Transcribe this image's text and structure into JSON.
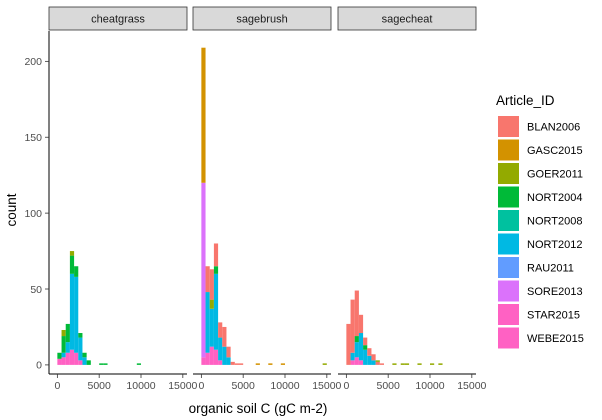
{
  "chart_data": {
    "type": "bar",
    "subtype": "stacked-histogram-faceted",
    "xlabel": "organic soil C (gC m-2)",
    "ylabel": "count",
    "xlim": [
      -1000,
      15500
    ],
    "ylim": [
      -6,
      220
    ],
    "x_ticks": [
      0,
      5000,
      10000,
      15000
    ],
    "y_ticks": [
      0,
      50,
      100,
      150,
      200
    ],
    "bin_width": 500,
    "grid": false,
    "legend_position": "right",
    "legend": {
      "title": "Article_ID",
      "entries": [
        {
          "name": "BLAN2006",
          "color": "#F8766D"
        },
        {
          "name": "GASC2015",
          "color": "#D39200"
        },
        {
          "name": "GOER2011",
          "color": "#93AA00"
        },
        {
          "name": "NORT2004",
          "color": "#00BA38"
        },
        {
          "name": "NORT2008",
          "color": "#00C19F"
        },
        {
          "name": "NORT2012",
          "color": "#00B9E3"
        },
        {
          "name": "RAU2011",
          "color": "#619CFF"
        },
        {
          "name": "SORE2013",
          "color": "#DB72FB"
        },
        {
          "name": "STAR2015",
          "color": "#FF61C3"
        },
        {
          "name": "WEBE2015",
          "color": "#FF61C3"
        }
      ]
    },
    "facets": [
      {
        "label": "cheatgrass",
        "bins": [
          {
            "x": 0,
            "layers": [
              {
                "series": "WEBE2015",
                "value": 4
              },
              {
                "series": "NORT2004",
                "value": 4
              }
            ]
          },
          {
            "x": 500,
            "layers": [
              {
                "series": "WEBE2015",
                "value": 5
              },
              {
                "series": "NORT2012",
                "value": 3
              },
              {
                "series": "NORT2004",
                "value": 11
              },
              {
                "series": "GOER2011",
                "value": 4
              }
            ]
          },
          {
            "x": 1000,
            "layers": [
              {
                "series": "WEBE2015",
                "value": 8
              },
              {
                "series": "NORT2012",
                "value": 7
              },
              {
                "series": "NORT2004",
                "value": 12
              }
            ]
          },
          {
            "x": 1500,
            "layers": [
              {
                "series": "WEBE2015",
                "value": 10
              },
              {
                "series": "NORT2012",
                "value": 50
              },
              {
                "series": "NORT2004",
                "value": 12
              },
              {
                "series": "GOER2011",
                "value": 3
              }
            ]
          },
          {
            "x": 2000,
            "layers": [
              {
                "series": "WEBE2015",
                "value": 8
              },
              {
                "series": "NORT2012",
                "value": 50
              },
              {
                "series": "NORT2004",
                "value": 7
              }
            ]
          },
          {
            "x": 2500,
            "layers": [
              {
                "series": "WEBE2015",
                "value": 3
              },
              {
                "series": "NORT2012",
                "value": 15
              },
              {
                "series": "NORT2004",
                "value": 3
              }
            ]
          },
          {
            "x": 3000,
            "layers": [
              {
                "series": "NORT2012",
                "value": 5
              },
              {
                "series": "NORT2004",
                "value": 3
              }
            ]
          },
          {
            "x": 3500,
            "layers": [
              {
                "series": "NORT2004",
                "value": 3
              }
            ]
          },
          {
            "x": 5000,
            "layers": [
              {
                "series": "NORT2004",
                "value": 1
              }
            ]
          },
          {
            "x": 5500,
            "layers": [
              {
                "series": "NORT2004",
                "value": 1
              }
            ]
          },
          {
            "x": 9500,
            "layers": [
              {
                "series": "NORT2004",
                "value": 1
              }
            ]
          }
        ]
      },
      {
        "label": "sagebrush",
        "bins": [
          {
            "x": 0,
            "layers": [
              {
                "series": "STAR2015",
                "value": 5
              },
              {
                "series": "SORE2013",
                "value": 115
              },
              {
                "series": "GASC2015",
                "value": 89
              }
            ]
          },
          {
            "x": 500,
            "layers": [
              {
                "series": "STAR2015",
                "value": 8
              },
              {
                "series": "NORT2012",
                "value": 40
              },
              {
                "series": "BLAN2006",
                "value": 17
              }
            ]
          },
          {
            "x": 1000,
            "layers": [
              {
                "series": "STAR2015",
                "value": 12
              },
              {
                "series": "NORT2012",
                "value": 25
              },
              {
                "series": "GOER2011",
                "value": 6
              },
              {
                "series": "BLAN2006",
                "value": 20
              }
            ]
          },
          {
            "x": 1500,
            "layers": [
              {
                "series": "STAR2015",
                "value": 10
              },
              {
                "series": "NORT2012",
                "value": 50
              },
              {
                "series": "NORT2004",
                "value": 5
              },
              {
                "series": "BLAN2006",
                "value": 15
              }
            ]
          },
          {
            "x": 2000,
            "layers": [
              {
                "series": "STAR2015",
                "value": 3
              },
              {
                "series": "NORT2012",
                "value": 15
              },
              {
                "series": "BLAN2006",
                "value": 10
              }
            ]
          },
          {
            "x": 2500,
            "layers": [
              {
                "series": "NORT2012",
                "value": 12
              },
              {
                "series": "BLAN2006",
                "value": 13
              }
            ]
          },
          {
            "x": 3000,
            "layers": [
              {
                "series": "NORT2012",
                "value": 5
              },
              {
                "series": "BLAN2006",
                "value": 7
              }
            ]
          },
          {
            "x": 3500,
            "layers": [
              {
                "series": "BLAN2006",
                "value": 2
              }
            ]
          },
          {
            "x": 4000,
            "layers": [
              {
                "series": "BLAN2006",
                "value": 1
              }
            ]
          },
          {
            "x": 4500,
            "layers": [
              {
                "series": "BLAN2006",
                "value": 1
              }
            ]
          },
          {
            "x": 6500,
            "layers": [
              {
                "series": "GASC2015",
                "value": 1
              }
            ]
          },
          {
            "x": 8000,
            "layers": [
              {
                "series": "GASC2015",
                "value": 1
              }
            ]
          },
          {
            "x": 9500,
            "layers": [
              {
                "series": "GASC2015",
                "value": 1
              }
            ]
          },
          {
            "x": 14500,
            "layers": [
              {
                "series": "GOER2011",
                "value": 1
              }
            ]
          }
        ]
      },
      {
        "label": "sagecheat",
        "bins": [
          {
            "x": 0,
            "layers": [
              {
                "series": "BLAN2006",
                "value": 27
              }
            ]
          },
          {
            "x": 500,
            "layers": [
              {
                "series": "STAR2015",
                "value": 3
              },
              {
                "series": "NORT2012",
                "value": 5
              },
              {
                "series": "BLAN2006",
                "value": 35
              }
            ]
          },
          {
            "x": 1000,
            "layers": [
              {
                "series": "STAR2015",
                "value": 5
              },
              {
                "series": "NORT2012",
                "value": 10
              },
              {
                "series": "NORT2004",
                "value": 4
              },
              {
                "series": "BLAN2006",
                "value": 30
              }
            ]
          },
          {
            "x": 1500,
            "layers": [
              {
                "series": "STAR2015",
                "value": 3
              },
              {
                "series": "NORT2012",
                "value": 18
              },
              {
                "series": "BLAN2006",
                "value": 12
              }
            ]
          },
          {
            "x": 2000,
            "layers": [
              {
                "series": "NORT2012",
                "value": 10
              },
              {
                "series": "NORT2004",
                "value": 3
              },
              {
                "series": "BLAN2006",
                "value": 5
              }
            ]
          },
          {
            "x": 2500,
            "layers": [
              {
                "series": "NORT2012",
                "value": 6
              },
              {
                "series": "BLAN2006",
                "value": 5
              }
            ]
          },
          {
            "x": 3000,
            "layers": [
              {
                "series": "NORT2012",
                "value": 3
              },
              {
                "series": "BLAN2006",
                "value": 4
              }
            ]
          },
          {
            "x": 3500,
            "layers": [
              {
                "series": "BLAN2006",
                "value": 2
              },
              {
                "series": "GOER2011",
                "value": 1
              }
            ]
          },
          {
            "x": 4000,
            "layers": [
              {
                "series": "BLAN2006",
                "value": 1
              }
            ]
          },
          {
            "x": 5500,
            "layers": [
              {
                "series": "GOER2011",
                "value": 1
              }
            ]
          },
          {
            "x": 6500,
            "layers": [
              {
                "series": "GOER2011",
                "value": 1
              }
            ]
          },
          {
            "x": 7000,
            "layers": [
              {
                "series": "GOER2011",
                "value": 1
              }
            ]
          },
          {
            "x": 8500,
            "layers": [
              {
                "series": "GOER2011",
                "value": 1
              }
            ]
          },
          {
            "x": 10000,
            "layers": [
              {
                "series": "GOER2011",
                "value": 1
              }
            ]
          },
          {
            "x": 11000,
            "layers": [
              {
                "series": "GOER2011",
                "value": 1
              }
            ]
          }
        ]
      }
    ]
  }
}
